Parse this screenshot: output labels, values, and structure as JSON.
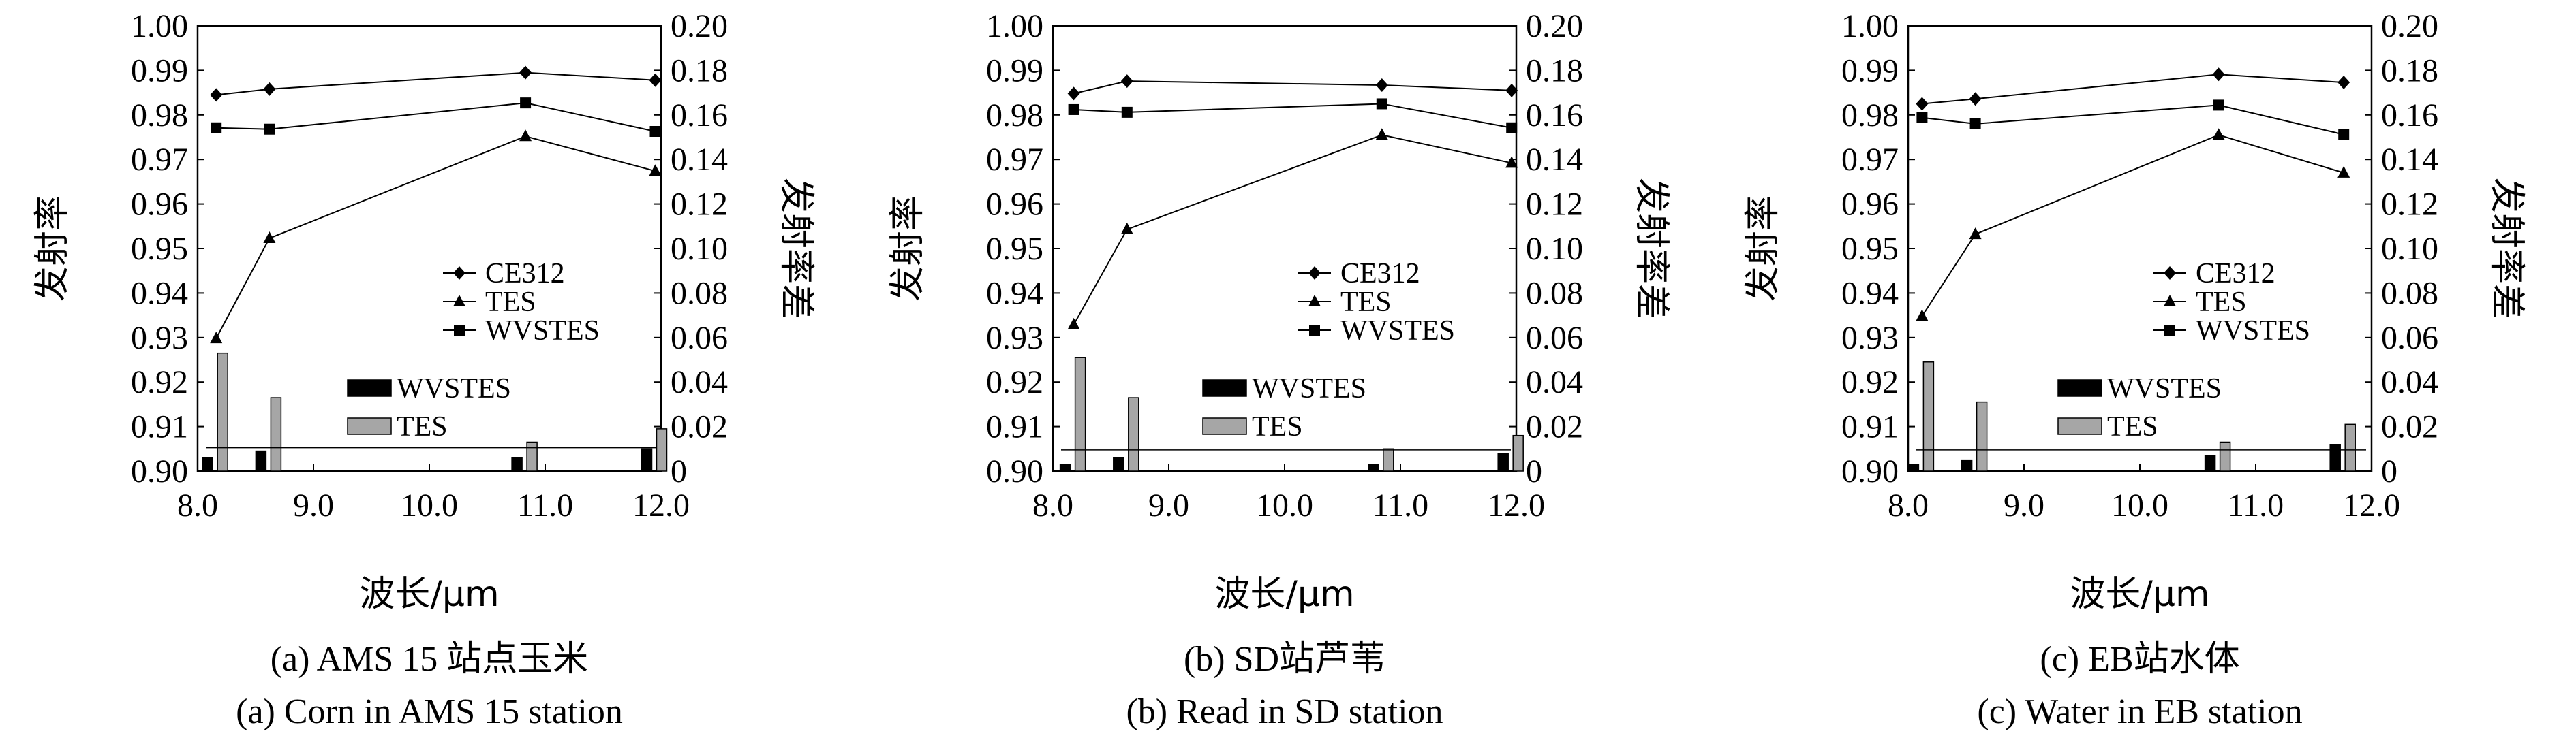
{
  "chart_data": [
    {
      "type": "line+bar",
      "caption_cn": "(a) AMS 15 站点玉米",
      "caption_en": "(a) Corn in AMS 15 station",
      "xlabel": "波长/μm",
      "ylabel_left": "发射率",
      "ylabel_right": "发射率差",
      "xlim": [
        8.0,
        12.0
      ],
      "ylim_left": [
        0.9,
        1.0
      ],
      "ylim_right": [
        0,
        0.2
      ],
      "xticks": [
        "8.0",
        "9.0",
        "10.0",
        "11.0",
        "12.0"
      ],
      "yticks_left": [
        "0.90",
        "0.91",
        "0.92",
        "0.93",
        "0.94",
        "0.95",
        "0.96",
        "0.97",
        "0.98",
        "0.99",
        "1.00"
      ],
      "yticks_right": [
        "0",
        "0.02",
        "0.04",
        "0.06",
        "0.08",
        "0.10",
        "0.12",
        "0.14",
        "0.16",
        "0.18",
        "0.20"
      ],
      "x": [
        8.16,
        8.62,
        10.83,
        11.95
      ],
      "series": [
        {
          "name": "CE312",
          "marker": "diamond",
          "values": [
            0.9845,
            0.9858,
            0.9895,
            0.9878
          ]
        },
        {
          "name": "TES",
          "marker": "triangle",
          "values": [
            0.9298,
            0.9523,
            0.9752,
            0.9674
          ]
        },
        {
          "name": "WVSTES",
          "marker": "square",
          "values": [
            0.9771,
            0.9768,
            0.9827,
            0.9763
          ]
        }
      ],
      "bar_series": [
        {
          "name": "WVSTES",
          "color": "#000000",
          "values": [
            0.006,
            0.009,
            0.006,
            0.01
          ]
        },
        {
          "name": "TES",
          "color": "#a6a6a6",
          "values": [
            0.053,
            0.033,
            0.013,
            0.019
          ]
        }
      ],
      "reference_line": 0.0105
    },
    {
      "type": "line+bar",
      "caption_cn": "(b) SD站芦苇",
      "caption_en": "(b) Read in SD station",
      "xlabel": "波长/μm",
      "ylabel_left": "发射率",
      "ylabel_right": "发射率差",
      "xlim": [
        8.0,
        12.0
      ],
      "ylim_left": [
        0.9,
        1.0
      ],
      "ylim_right": [
        0,
        0.2
      ],
      "xticks": [
        "8.0",
        "9.0",
        "10.0",
        "11.0",
        "12.0"
      ],
      "yticks_left": [
        "0.90",
        "0.91",
        "0.92",
        "0.93",
        "0.94",
        "0.95",
        "0.96",
        "0.97",
        "0.98",
        "0.99",
        "1.00"
      ],
      "yticks_right": [
        "0",
        "0.02",
        "0.04",
        "0.06",
        "0.08",
        "0.10",
        "0.12",
        "0.14",
        "0.16",
        "0.18",
        "0.20"
      ],
      "x": [
        8.18,
        8.64,
        10.84,
        11.96
      ],
      "series": [
        {
          "name": "CE312",
          "marker": "diamond",
          "values": [
            0.9848,
            0.9876,
            0.9867,
            0.9855
          ]
        },
        {
          "name": "TES",
          "marker": "triangle",
          "values": [
            0.9329,
            0.9543,
            0.9755,
            0.9692
          ]
        },
        {
          "name": "WVSTES",
          "marker": "square",
          "values": [
            0.9812,
            0.9806,
            0.9825,
            0.9771
          ]
        }
      ],
      "bar_series": [
        {
          "name": "WVSTES",
          "color": "#000000",
          "values": [
            0.003,
            0.006,
            0.003,
            0.008
          ]
        },
        {
          "name": "TES",
          "color": "#a6a6a6",
          "values": [
            0.051,
            0.033,
            0.01,
            0.016
          ]
        }
      ],
      "reference_line": 0.0095
    },
    {
      "type": "line+bar",
      "caption_cn": "(c) EB站水体",
      "caption_en": "(c) Water in EB station",
      "xlabel": "波长/μm",
      "ylabel_left": "发射率",
      "ylabel_right": "发射率差",
      "xlim": [
        8.0,
        12.0
      ],
      "ylim_left": [
        0.9,
        1.0
      ],
      "ylim_right": [
        0,
        0.2
      ],
      "xticks": [
        "8.0",
        "9.0",
        "10.0",
        "11.0",
        "12.0"
      ],
      "yticks_left": [
        "0.90",
        "0.91",
        "0.92",
        "0.93",
        "0.94",
        "0.95",
        "0.96",
        "0.97",
        "0.98",
        "0.99",
        "1.00"
      ],
      "yticks_right": [
        "0",
        "0.02",
        "0.04",
        "0.06",
        "0.08",
        "0.10",
        "0.12",
        "0.14",
        "0.16",
        "0.18",
        "0.20"
      ],
      "x": [
        8.12,
        8.58,
        10.68,
        11.76
      ],
      "series": [
        {
          "name": "CE312",
          "marker": "diamond",
          "values": [
            0.9825,
            0.9836,
            0.9891,
            0.9873
          ]
        },
        {
          "name": "TES",
          "marker": "triangle",
          "values": [
            0.9348,
            0.9532,
            0.9755,
            0.967
          ]
        },
        {
          "name": "WVSTES",
          "marker": "square",
          "values": [
            0.9794,
            0.978,
            0.9822,
            0.9756
          ]
        }
      ],
      "bar_series": [
        {
          "name": "WVSTES",
          "color": "#000000",
          "values": [
            0.003,
            0.005,
            0.007,
            0.012
          ]
        },
        {
          "name": "TES",
          "color": "#a6a6a6",
          "values": [
            0.049,
            0.031,
            0.013,
            0.021
          ]
        }
      ],
      "reference_line": 0.0095
    }
  ]
}
